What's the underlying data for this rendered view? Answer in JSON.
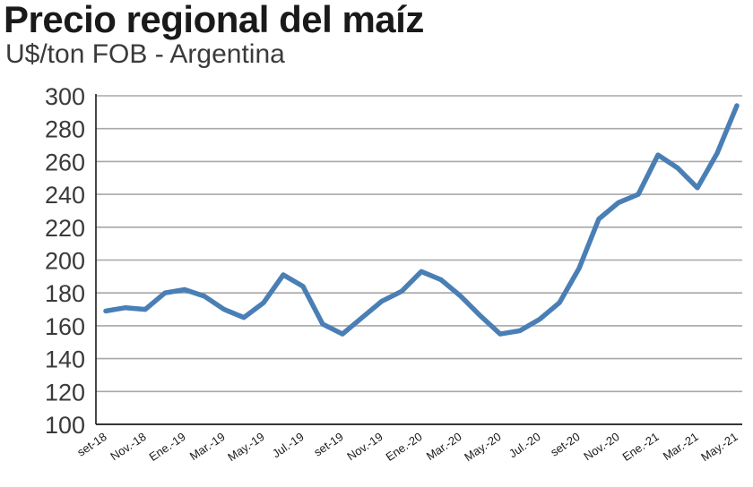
{
  "chart_data": {
    "type": "line",
    "title": "Precio regional del maíz",
    "subtitle": "U$/ton FOB - Argentina",
    "xlabel": "",
    "ylabel": "",
    "ylim": [
      100,
      300
    ],
    "yticks": [
      100,
      120,
      140,
      160,
      180,
      200,
      220,
      240,
      260,
      280,
      300
    ],
    "grid": true,
    "legend": "none",
    "colors": {
      "line": "#4a7fb5",
      "grid": "#a8a8a8",
      "axis": "#1a1a1a"
    },
    "x_tick_labels": [
      "set-18",
      "Nov.-18",
      "Ene.-19",
      "Mar.-19",
      "May.-19",
      "Jul.-19",
      "set-19",
      "Nov.-19",
      "Ene.-20",
      "Mar.-20",
      "May.-20",
      "Jul.-20",
      "set-20",
      "Nov.-20",
      "Ene.-21",
      "Mar.-21",
      "May.-21"
    ],
    "x": [
      "set-18",
      "oct-18",
      "nov-18",
      "dic-18",
      "ene-19",
      "feb-19",
      "mar-19",
      "abr-19",
      "may-19",
      "jun-19",
      "jul-19",
      "ago-19",
      "set-19",
      "oct-19",
      "nov-19",
      "dic-19",
      "ene-20",
      "feb-20",
      "mar-20",
      "abr-20",
      "may-20",
      "jun-20",
      "jul-20",
      "ago-20",
      "set-20",
      "oct-20",
      "nov-20",
      "dic-20",
      "ene-21",
      "feb-21",
      "mar-21",
      "abr-21",
      "may-21"
    ],
    "series": [
      {
        "values": [
          169,
          171,
          170,
          180,
          182,
          178,
          170,
          165,
          174,
          191,
          184,
          161,
          155,
          165,
          175,
          181,
          193,
          188,
          178,
          166,
          155,
          157,
          164,
          174,
          195,
          225,
          235,
          240,
          264,
          256,
          244,
          265,
          294
        ]
      }
    ]
  }
}
